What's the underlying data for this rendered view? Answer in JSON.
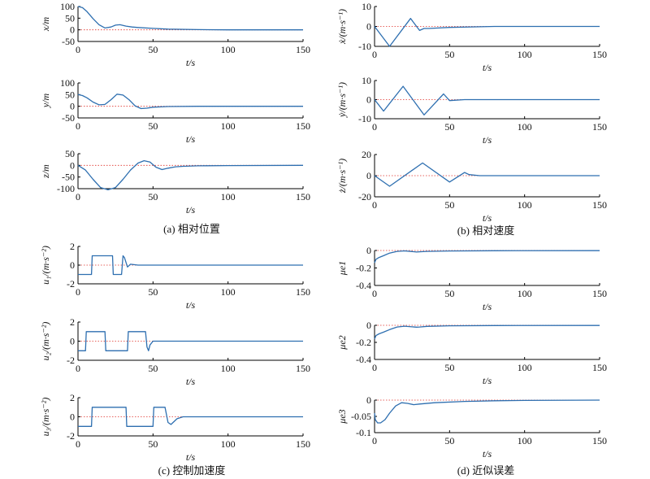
{
  "captions": {
    "a": "(a) 相对位置",
    "b": "(b) 相对速度",
    "c": "(c) 控制加速度",
    "d": "(d) 近似误差"
  },
  "colors": {
    "curve": "#2e6fb0",
    "reference": "#e0322b",
    "axis": "#000000"
  },
  "chart_data": [
    {
      "id": "x",
      "type": "line",
      "ylabel": "x/m",
      "xlabel": "t/s",
      "xlim": [
        0,
        150
      ],
      "ylim": [
        -50,
        100
      ],
      "xticks": [
        0,
        50,
        100,
        150
      ],
      "yticks": [
        -50,
        0,
        50,
        100
      ],
      "reference_line": 0,
      "x": [
        0,
        3,
        6,
        10,
        14,
        18,
        22,
        25,
        28,
        32,
        36,
        40,
        50,
        60,
        80,
        100,
        120,
        150
      ],
      "y": [
        100,
        95,
        78,
        48,
        22,
        8,
        12,
        20,
        22,
        16,
        12,
        10,
        6,
        3,
        1,
        0,
        0,
        0
      ]
    },
    {
      "id": "y",
      "type": "line",
      "ylabel": "y/m",
      "xlabel": "t/s",
      "xlim": [
        0,
        150
      ],
      "ylim": [
        -50,
        100
      ],
      "xticks": [
        0,
        50,
        100,
        150
      ],
      "yticks": [
        -50,
        0,
        50,
        100
      ],
      "reference_line": 0,
      "x": [
        0,
        3,
        6,
        10,
        14,
        18,
        22,
        26,
        30,
        34,
        38,
        42,
        46,
        50,
        60,
        80,
        100,
        150
      ],
      "y": [
        50,
        46,
        36,
        18,
        6,
        8,
        28,
        52,
        48,
        28,
        2,
        -10,
        -8,
        -4,
        -1,
        0,
        0,
        0
      ]
    },
    {
      "id": "z",
      "type": "line",
      "ylabel": "z/m",
      "xlabel": "t/s",
      "xlim": [
        0,
        150
      ],
      "ylim": [
        -100,
        50
      ],
      "xticks": [
        0,
        50,
        100,
        150
      ],
      "yticks": [
        -100,
        -50,
        0,
        50
      ],
      "reference_line": 0,
      "x": [
        0,
        5,
        10,
        15,
        20,
        25,
        30,
        35,
        40,
        44,
        48,
        52,
        56,
        60,
        65,
        70,
        80,
        100,
        150
      ],
      "y": [
        0,
        -20,
        -60,
        -95,
        -105,
        -95,
        -60,
        -20,
        10,
        20,
        14,
        -8,
        -18,
        -12,
        -6,
        -4,
        -2,
        -1,
        0
      ]
    },
    {
      "id": "vx",
      "type": "line",
      "ylabel": "ẋ/(m·s⁻¹)",
      "xlabel": "t/s",
      "xlim": [
        0,
        150
      ],
      "ylim": [
        -10,
        10
      ],
      "xticks": [
        0,
        50,
        100,
        150
      ],
      "yticks": [
        -10,
        0,
        10
      ],
      "reference_line": 0,
      "x": [
        0,
        10,
        24,
        30,
        33,
        36,
        50,
        80,
        150
      ],
      "y": [
        0,
        -10,
        4,
        -2,
        -1,
        -1,
        -0.5,
        0,
        0
      ]
    },
    {
      "id": "vy",
      "type": "line",
      "ylabel": "ẏ/(m·s⁻¹)",
      "xlabel": "t/s",
      "xlim": [
        0,
        150
      ],
      "ylim": [
        -10,
        10
      ],
      "xticks": [
        0,
        50,
        100,
        150
      ],
      "yticks": [
        -10,
        0,
        10
      ],
      "reference_line": 0,
      "x": [
        0,
        6,
        19,
        33,
        46,
        50,
        60,
        100,
        150
      ],
      "y": [
        0,
        -6,
        7,
        -8,
        3,
        -0.5,
        0,
        0,
        0
      ]
    },
    {
      "id": "vz",
      "type": "line",
      "ylabel": "ż/(m·s⁻¹)",
      "xlabel": "t/s",
      "xlim": [
        0,
        150
      ],
      "ylim": [
        -20,
        20
      ],
      "xticks": [
        0,
        50,
        100,
        150
      ],
      "yticks": [
        -20,
        0,
        20
      ],
      "reference_line": 0,
      "x": [
        0,
        10,
        32,
        50,
        60,
        63,
        70,
        100,
        150
      ],
      "y": [
        0,
        -10,
        12,
        -6,
        3,
        1,
        0,
        0,
        0
      ]
    },
    {
      "id": "u1",
      "type": "line",
      "ylabel": "u₁/(m·s⁻²)",
      "xlabel": "t/s",
      "xlim": [
        0,
        150
      ],
      "ylim": [
        -2,
        2
      ],
      "xticks": [
        0,
        50,
        100,
        150
      ],
      "yticks": [
        -2,
        0,
        2
      ],
      "reference_line": 0,
      "x": [
        0,
        9,
        9.5,
        23,
        23.5,
        29,
        30,
        31,
        33,
        35,
        40,
        60,
        150
      ],
      "y": [
        -1,
        -1,
        1,
        1,
        -1,
        -1,
        1,
        0.8,
        -0.2,
        0.1,
        0,
        0,
        0
      ]
    },
    {
      "id": "u2",
      "type": "line",
      "ylabel": "u₂/(m·s⁻²)",
      "xlabel": "t/s",
      "xlim": [
        0,
        150
      ],
      "ylim": [
        -2,
        2
      ],
      "xticks": [
        0,
        50,
        100,
        150
      ],
      "yticks": [
        -2,
        0,
        2
      ],
      "reference_line": 0,
      "x": [
        0,
        5,
        5.5,
        18,
        18.5,
        33,
        33.5,
        45,
        46,
        47,
        48,
        50,
        60,
        150
      ],
      "y": [
        -1,
        -1,
        1,
        1,
        -1,
        -1,
        1,
        1,
        -0.6,
        -1,
        -0.4,
        0,
        0,
        0
      ]
    },
    {
      "id": "u3",
      "type": "line",
      "ylabel": "u₃/(m·s⁻²)",
      "xlabel": "t/s",
      "xlim": [
        0,
        150
      ],
      "ylim": [
        -2,
        2
      ],
      "xticks": [
        0,
        50,
        100,
        150
      ],
      "yticks": [
        -2,
        0,
        2
      ],
      "reference_line": 0,
      "x": [
        0,
        9,
        9.5,
        32,
        32.5,
        50,
        50.5,
        58,
        60,
        62,
        66,
        70,
        150
      ],
      "y": [
        -1,
        -1,
        1,
        1,
        -1,
        -1,
        1,
        1,
        -0.6,
        -0.8,
        -0.2,
        0,
        0
      ]
    },
    {
      "id": "mu1",
      "type": "line",
      "ylabel": "μe1",
      "xlabel": "t/s",
      "xlim": [
        0,
        150
      ],
      "ylim": [
        -0.4,
        0
      ],
      "xticks": [
        0,
        50,
        100,
        150
      ],
      "yticks": [
        -0.4,
        -0.2,
        0
      ],
      "reference_line": 0,
      "x": [
        0,
        1,
        3,
        6,
        10,
        15,
        20,
        25,
        28,
        30,
        35,
        50,
        80,
        150
      ],
      "y": [
        -0.14,
        -0.1,
        -0.08,
        -0.06,
        -0.03,
        -0.01,
        -0.005,
        -0.012,
        -0.018,
        -0.015,
        -0.01,
        -0.006,
        -0.003,
        -0.002
      ]
    },
    {
      "id": "mu2",
      "type": "line",
      "ylabel": "μe2",
      "xlabel": "t/s",
      "xlim": [
        0,
        150
      ],
      "ylim": [
        -0.4,
        0
      ],
      "xticks": [
        0,
        50,
        100,
        150
      ],
      "yticks": [
        -0.4,
        -0.2,
        0
      ],
      "reference_line": 0,
      "x": [
        0,
        1,
        3,
        6,
        10,
        15,
        20,
        25,
        28,
        30,
        35,
        50,
        80,
        150
      ],
      "y": [
        -0.16,
        -0.12,
        -0.1,
        -0.08,
        -0.05,
        -0.02,
        -0.01,
        -0.018,
        -0.022,
        -0.02,
        -0.012,
        -0.006,
        -0.003,
        -0.002
      ]
    },
    {
      "id": "mu3",
      "type": "line",
      "ylabel": "μe3",
      "xlabel": "t/s",
      "xlim": [
        0,
        150
      ],
      "ylim": [
        -0.1,
        0
      ],
      "xticks": [
        0,
        50,
        100,
        150
      ],
      "yticks": [
        -0.1,
        -0.05,
        0
      ],
      "reference_line": 0,
      "x": [
        0,
        0.5,
        2,
        4,
        7,
        10,
        14,
        18,
        22,
        26,
        30,
        40,
        60,
        80,
        100,
        150
      ],
      "y": [
        -0.04,
        -0.06,
        -0.07,
        -0.07,
        -0.06,
        -0.04,
        -0.018,
        -0.008,
        -0.01,
        -0.014,
        -0.012,
        -0.008,
        -0.004,
        -0.002,
        -0.001,
        0
      ]
    }
  ]
}
